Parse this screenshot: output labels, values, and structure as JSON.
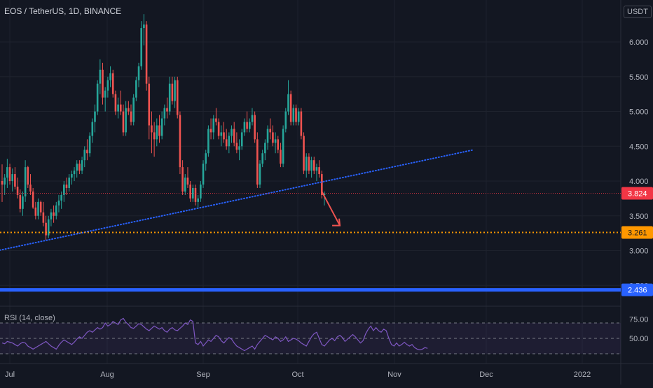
{
  "header": {
    "title": "EOS / TetherUS, 1D, BINANCE",
    "currency_badge": "USDT"
  },
  "rsi": {
    "label": "RSI (14, close)",
    "levels": [
      70,
      30
    ],
    "mid": 50,
    "tick_labels": [
      "75.00",
      "50.00"
    ],
    "values": [
      44,
      43,
      46,
      45,
      44,
      42,
      40,
      43,
      45,
      44,
      40,
      38,
      36,
      38,
      40,
      42,
      44,
      46,
      43,
      40,
      38,
      36,
      41,
      45,
      48,
      46,
      44,
      42,
      45,
      49,
      52,
      50,
      54,
      58,
      60,
      58,
      61,
      64,
      62,
      64,
      70,
      66,
      68,
      72,
      70,
      68,
      74,
      76,
      71,
      68,
      64,
      63,
      66,
      69,
      68,
      65,
      62,
      60,
      63,
      66,
      64,
      62,
      64,
      60,
      58,
      62,
      64,
      61,
      60,
      63,
      66,
      70,
      68,
      74,
      72,
      44,
      42,
      46,
      40,
      44,
      48,
      46,
      50,
      54,
      52,
      47,
      44,
      48,
      51,
      49,
      44,
      40,
      38,
      36,
      34,
      36,
      38,
      40,
      36,
      42,
      46,
      50,
      54,
      52,
      50,
      48,
      52,
      50,
      46,
      48,
      52,
      46,
      48,
      50,
      49,
      47,
      44,
      42,
      40,
      46,
      52,
      56,
      58,
      50,
      42,
      40,
      44,
      48,
      50,
      47,
      52,
      54,
      51,
      46,
      49,
      52,
      55,
      52,
      48,
      44,
      47,
      56,
      62,
      66,
      60,
      64,
      60,
      58,
      62,
      60,
      50,
      42,
      40,
      44,
      40,
      42,
      45,
      42,
      40,
      42,
      38,
      36,
      35,
      36,
      38,
      37
    ]
  },
  "price_axis": {
    "ticks": [
      "6.000",
      "5.500",
      "5.000",
      "4.500",
      "4.000",
      "3.500",
      "3.000",
      "2.500"
    ],
    "current_price_label": "3.824",
    "support_label": "3.261",
    "blue_line_label": "2.436"
  },
  "time_axis": {
    "ticks": [
      "Jul",
      "Aug",
      "Sep",
      "Oct",
      "Nov",
      "Dec",
      "2022"
    ]
  },
  "colors": {
    "background": "#131722",
    "up": "#26a69a",
    "down": "#ef5350",
    "trendline": "#2962ff",
    "support": "#ff9800",
    "blue_level": "#2962ff",
    "rsi_line": "#7e57c2",
    "current_price": "#f23645"
  },
  "chart_data": {
    "type": "candlestick",
    "title": "EOS / TetherUS, 1D, BINANCE",
    "ylim": [
      2.4,
      6.4
    ],
    "y_scale": "linear",
    "candles": [
      [
        4.0,
        4.24,
        3.7,
        3.95
      ],
      [
        3.95,
        4.1,
        3.8,
        4.05
      ],
      [
        4.05,
        4.32,
        3.9,
        4.2
      ],
      [
        4.2,
        4.25,
        3.95,
        4.0
      ],
      [
        4.0,
        4.18,
        3.85,
        4.1
      ],
      [
        4.1,
        4.2,
        3.88,
        3.92
      ],
      [
        3.92,
        4.05,
        3.75,
        3.8
      ],
      [
        3.8,
        3.88,
        3.55,
        3.6
      ],
      [
        3.6,
        3.85,
        3.5,
        3.78
      ],
      [
        3.78,
        4.3,
        3.7,
        4.2
      ],
      [
        4.2,
        4.22,
        3.9,
        3.95
      ],
      [
        3.95,
        4.1,
        3.8,
        3.85
      ],
      [
        3.85,
        3.9,
        3.6,
        3.62
      ],
      [
        3.62,
        3.7,
        3.45,
        3.5
      ],
      [
        3.5,
        3.75,
        3.45,
        3.7
      ],
      [
        3.7,
        3.72,
        3.5,
        3.55
      ],
      [
        3.55,
        3.7,
        3.35,
        3.4
      ],
      [
        3.4,
        3.5,
        3.15,
        3.22
      ],
      [
        3.22,
        3.5,
        3.18,
        3.45
      ],
      [
        3.45,
        3.6,
        3.35,
        3.55
      ],
      [
        3.55,
        3.65,
        3.4,
        3.5
      ],
      [
        3.5,
        3.7,
        3.45,
        3.65
      ],
      [
        3.65,
        3.8,
        3.55,
        3.72
      ],
      [
        3.72,
        3.85,
        3.6,
        3.8
      ],
      [
        3.8,
        4.0,
        3.7,
        3.95
      ],
      [
        3.95,
        4.05,
        3.8,
        3.9
      ],
      [
        3.9,
        4.1,
        3.85,
        4.05
      ],
      [
        4.05,
        4.15,
        3.95,
        4.1
      ],
      [
        4.1,
        4.2,
        4.0,
        4.15
      ],
      [
        4.15,
        4.3,
        4.05,
        4.25
      ],
      [
        4.25,
        4.3,
        4.1,
        4.15
      ],
      [
        4.15,
        4.35,
        4.1,
        4.3
      ],
      [
        4.3,
        4.5,
        4.2,
        4.45
      ],
      [
        4.45,
        4.6,
        4.3,
        4.4
      ],
      [
        4.4,
        4.7,
        4.35,
        4.65
      ],
      [
        4.65,
        4.9,
        4.55,
        4.85
      ],
      [
        4.85,
        5.1,
        4.7,
        5.0
      ],
      [
        5.0,
        5.45,
        4.95,
        5.4
      ],
      [
        5.4,
        5.75,
        5.25,
        5.6
      ],
      [
        5.6,
        5.7,
        5.1,
        5.2
      ],
      [
        5.2,
        5.35,
        5.0,
        5.3
      ],
      [
        5.3,
        5.5,
        5.2,
        5.45
      ],
      [
        5.45,
        5.65,
        5.35,
        5.55
      ],
      [
        5.55,
        5.6,
        5.2,
        5.25
      ],
      [
        5.25,
        5.3,
        4.95,
        5.0
      ],
      [
        5.0,
        5.2,
        4.9,
        5.1
      ],
      [
        5.1,
        5.3,
        4.95,
        5.0
      ],
      [
        5.0,
        5.1,
        4.65,
        4.7
      ],
      [
        4.7,
        5.15,
        4.65,
        5.05
      ],
      [
        5.05,
        5.15,
        4.95,
        5.0
      ],
      [
        5.0,
        5.1,
        4.8,
        4.85
      ],
      [
        4.85,
        5.25,
        4.8,
        5.2
      ],
      [
        5.2,
        5.5,
        5.15,
        5.45
      ],
      [
        5.45,
        5.7,
        5.35,
        5.65
      ],
      [
        5.65,
        6.3,
        5.6,
        6.2
      ],
      [
        6.2,
        6.4,
        5.95,
        6.25
      ],
      [
        6.25,
        6.3,
        5.3,
        5.4
      ],
      [
        5.4,
        5.5,
        4.6,
        4.8
      ],
      [
        4.8,
        5.0,
        4.4,
        4.7
      ],
      [
        4.7,
        4.85,
        4.35,
        4.6
      ],
      [
        4.6,
        4.9,
        4.5,
        4.8
      ],
      [
        4.8,
        4.95,
        4.55,
        4.65
      ],
      [
        4.65,
        5.0,
        4.6,
        4.9
      ],
      [
        4.9,
        5.1,
        4.8,
        5.05
      ],
      [
        5.05,
        5.2,
        4.9,
        5.0
      ],
      [
        5.0,
        5.5,
        4.95,
        5.4
      ],
      [
        5.4,
        5.5,
        5.1,
        5.15
      ],
      [
        5.15,
        5.5,
        5.05,
        5.45
      ],
      [
        5.45,
        5.5,
        4.9,
        4.95
      ],
      [
        4.95,
        5.0,
        4.1,
        4.2
      ],
      [
        4.2,
        4.3,
        3.8,
        3.85
      ],
      [
        3.85,
        4.1,
        3.8,
        4.05
      ],
      [
        4.05,
        4.2,
        3.9,
        3.95
      ],
      [
        3.95,
        4.0,
        3.7,
        3.75
      ],
      [
        3.75,
        3.95,
        3.7,
        3.9
      ],
      [
        3.9,
        3.95,
        3.65,
        3.7
      ],
      [
        3.7,
        3.8,
        3.62,
        3.75
      ],
      [
        3.75,
        4.0,
        3.7,
        3.95
      ],
      [
        3.95,
        4.3,
        3.9,
        4.25
      ],
      [
        4.25,
        4.45,
        4.15,
        4.4
      ],
      [
        4.4,
        4.8,
        4.35,
        4.75
      ],
      [
        4.75,
        4.9,
        4.6,
        4.7
      ],
      [
        4.7,
        4.95,
        4.6,
        4.9
      ],
      [
        4.9,
        5.05,
        4.8,
        4.85
      ],
      [
        4.85,
        4.9,
        4.6,
        4.65
      ],
      [
        4.65,
        4.8,
        4.5,
        4.7
      ],
      [
        4.7,
        4.85,
        4.55,
        4.6
      ],
      [
        4.6,
        4.75,
        4.45,
        4.5
      ],
      [
        4.5,
        4.7,
        4.4,
        4.65
      ],
      [
        4.65,
        4.8,
        4.55,
        4.75
      ],
      [
        4.75,
        4.85,
        4.5,
        4.55
      ],
      [
        4.55,
        4.7,
        4.4,
        4.45
      ],
      [
        4.45,
        4.6,
        4.3,
        4.5
      ],
      [
        4.5,
        4.75,
        4.45,
        4.7
      ],
      [
        4.7,
        4.9,
        4.65,
        4.85
      ],
      [
        4.85,
        5.0,
        4.7,
        4.75
      ],
      [
        4.75,
        4.9,
        4.7,
        4.85
      ],
      [
        4.85,
        5.05,
        4.8,
        4.95
      ],
      [
        4.95,
        5.0,
        4.55,
        4.6
      ],
      [
        4.6,
        4.7,
        3.9,
        3.95
      ],
      [
        3.95,
        4.3,
        3.9,
        4.25
      ],
      [
        4.25,
        4.45,
        4.2,
        4.4
      ],
      [
        4.4,
        4.6,
        4.3,
        4.55
      ],
      [
        4.55,
        4.8,
        4.45,
        4.75
      ],
      [
        4.75,
        4.9,
        4.6,
        4.7
      ],
      [
        4.7,
        4.8,
        4.5,
        4.55
      ],
      [
        4.55,
        4.7,
        4.4,
        4.6
      ],
      [
        4.6,
        4.65,
        4.4,
        4.45
      ],
      [
        4.45,
        4.55,
        4.2,
        4.25
      ],
      [
        4.25,
        4.8,
        4.2,
        4.75
      ],
      [
        4.75,
        5.05,
        4.7,
        5.0
      ],
      [
        5.0,
        5.45,
        4.95,
        5.25
      ],
      [
        5.25,
        5.3,
        4.8,
        4.85
      ],
      [
        4.85,
        5.1,
        4.8,
        5.05
      ],
      [
        5.05,
        5.1,
        4.8,
        4.85
      ],
      [
        4.85,
        5.05,
        4.8,
        5.0
      ],
      [
        5.0,
        5.05,
        4.6,
        4.65
      ],
      [
        4.65,
        4.7,
        4.1,
        4.15
      ],
      [
        4.15,
        4.4,
        4.05,
        4.35
      ],
      [
        4.35,
        4.4,
        4.1,
        4.15
      ],
      [
        4.15,
        4.35,
        4.05,
        4.3
      ],
      [
        4.3,
        4.35,
        4.1,
        4.15
      ],
      [
        4.15,
        4.25,
        4.0,
        4.2
      ],
      [
        4.2,
        4.3,
        4.05,
        4.1
      ],
      [
        4.1,
        4.15,
        3.75,
        3.8
      ],
      [
        3.8,
        3.85,
        3.65,
        3.82
      ]
    ],
    "current_price": 3.824,
    "support_level": 3.261,
    "blue_level": 2.436,
    "trendline": {
      "from": {
        "index": -3,
        "price": 2.99
      },
      "to": {
        "index": 183,
        "price": 4.45
      }
    },
    "arrow": {
      "from": {
        "index": 124,
        "price": 3.85
      },
      "to": {
        "index": 131,
        "price": 3.36
      }
    },
    "grid": true
  }
}
